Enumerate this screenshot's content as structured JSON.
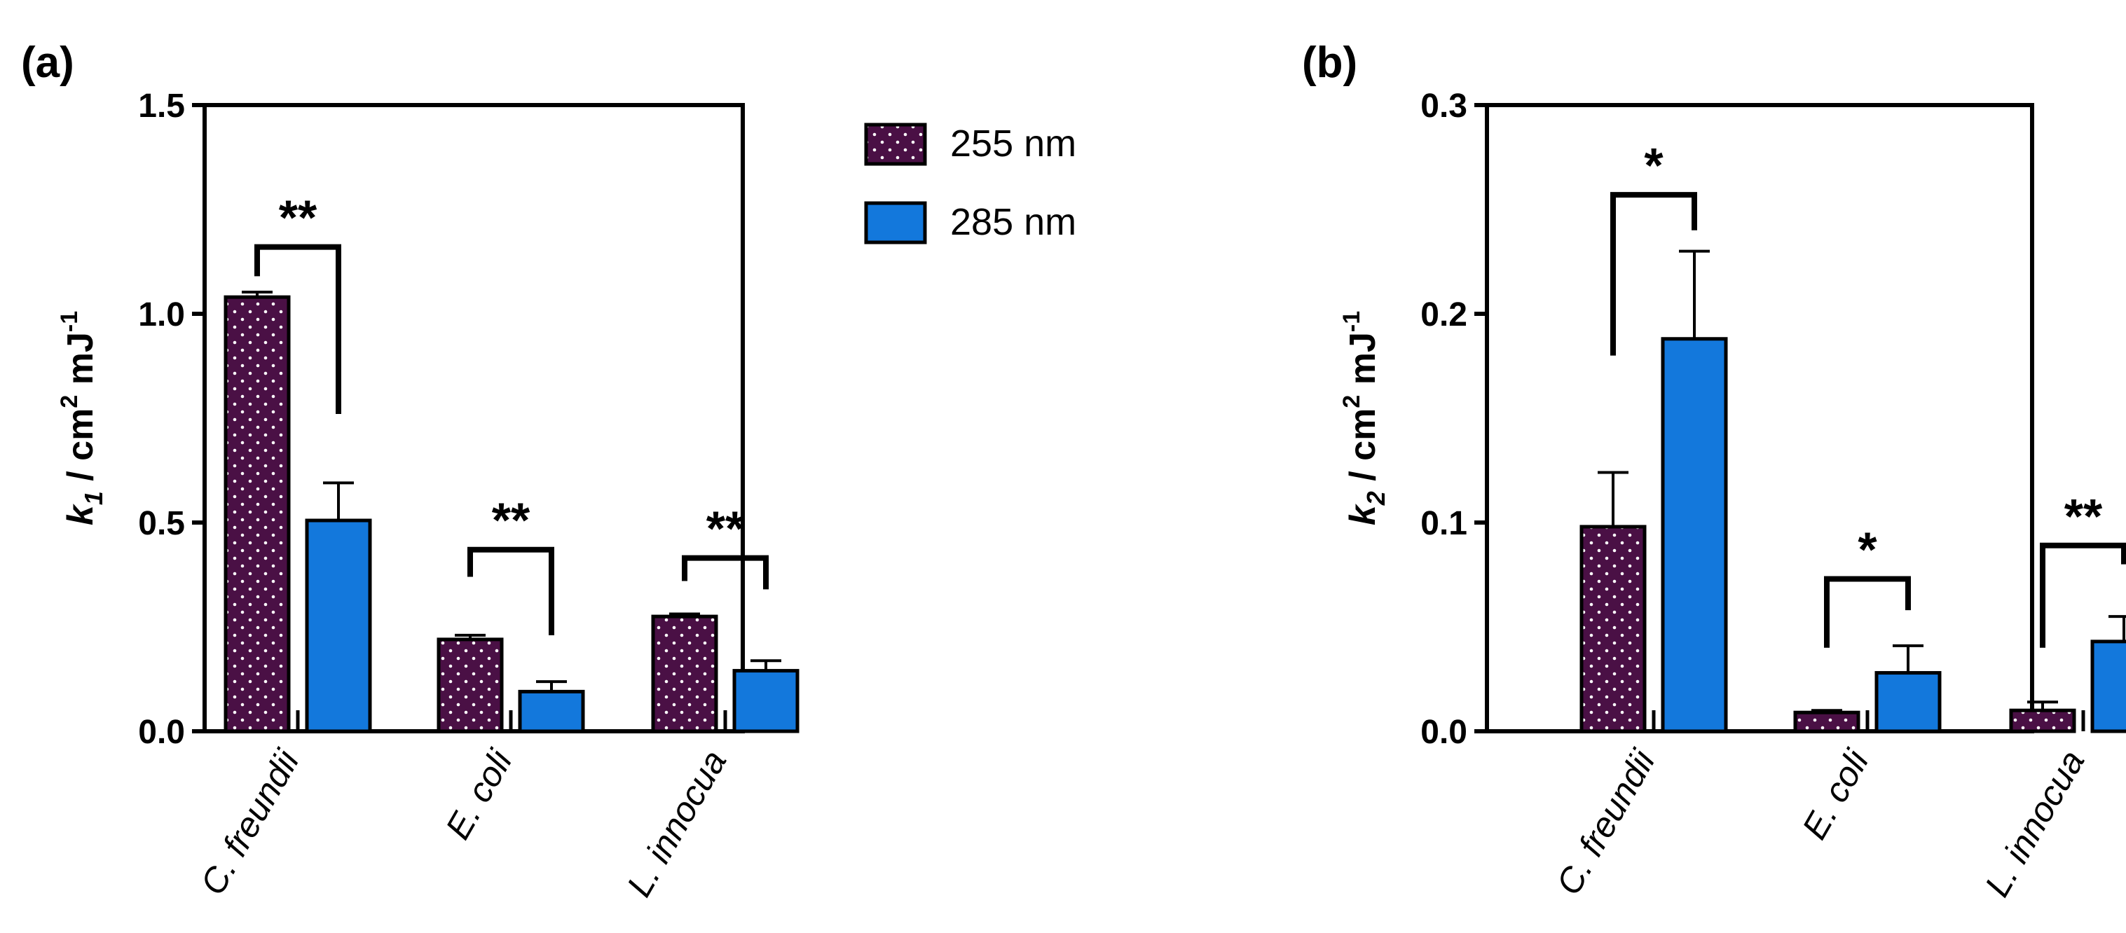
{
  "legend": {
    "items": [
      {
        "label": "255 nm",
        "color": "#4A1045",
        "pattern": "dotted"
      },
      {
        "label": "285 nm",
        "color": "#1378DC",
        "pattern": "solid"
      }
    ]
  },
  "chart_data": [
    {
      "type": "bar",
      "panel_label": "(a)",
      "ylabel_var": "k",
      "ylabel_sub": "1",
      "ylabel_unit": " / cm",
      "ylabel_unit_sup": "2",
      "ylabel_unit2": " mJ",
      "ylabel_unit2_sup": "-1",
      "ylim": [
        0,
        1.5
      ],
      "yticks": [
        0.0,
        0.5,
        1.0,
        1.5
      ],
      "ytick_labels": [
        "0.0",
        "0.5",
        "1.0",
        "1.5"
      ],
      "categories": [
        "C. freundii",
        "E. coli",
        "L. innocua"
      ],
      "series": [
        {
          "name": "255 nm",
          "values": [
            1.04,
            0.22,
            0.275
          ],
          "errors": [
            0.012,
            0.01,
            0.006
          ]
        },
        {
          "name": "285 nm",
          "values": [
            0.505,
            0.095,
            0.145
          ],
          "errors": [
            0.09,
            0.024,
            0.024
          ]
        }
      ],
      "significance": [
        {
          "category": 0,
          "label": "**",
          "bracket_y": 1.16,
          "left_bottom": 1.09,
          "right_bottom": 0.76
        },
        {
          "category": 1,
          "label": "**",
          "bracket_y": 0.435,
          "left_bottom": 0.37,
          "right_bottom": 0.23
        },
        {
          "category": 2,
          "label": "**",
          "bracket_y": 0.415,
          "left_bottom": 0.36,
          "right_bottom": 0.34
        }
      ]
    },
    {
      "type": "bar",
      "panel_label": "(b)",
      "ylabel_var": "k",
      "ylabel_sub": "2",
      "ylabel_unit": " / cm",
      "ylabel_unit_sup": "2",
      "ylabel_unit2": " mJ",
      "ylabel_unit2_sup": "-1",
      "ylim": [
        0,
        0.3
      ],
      "yticks": [
        0.0,
        0.1,
        0.2,
        0.3
      ],
      "ytick_labels": [
        "0.0",
        "0.1",
        "0.2",
        "0.3"
      ],
      "categories": [
        "C. freundii",
        "E. coli",
        "L. innocua"
      ],
      "series": [
        {
          "name": "255 nm",
          "values": [
            0.098,
            0.009,
            0.01
          ],
          "errors": [
            0.026,
            0.001,
            0.004
          ]
        },
        {
          "name": "285 nm",
          "values": [
            0.188,
            0.028,
            0.043
          ],
          "errors": [
            0.042,
            0.013,
            0.012
          ]
        }
      ],
      "significance": [
        {
          "category": 0,
          "label": "*",
          "bracket_y": 0.257,
          "left_bottom": 0.18,
          "right_bottom": 0.24
        },
        {
          "category": 1,
          "label": "*",
          "bracket_y": 0.073,
          "left_bottom": 0.04,
          "right_bottom": 0.058
        },
        {
          "category": 2,
          "label": "**",
          "bracket_y": 0.089,
          "left_bottom": 0.04,
          "right_bottom": 0.08
        }
      ]
    }
  ]
}
